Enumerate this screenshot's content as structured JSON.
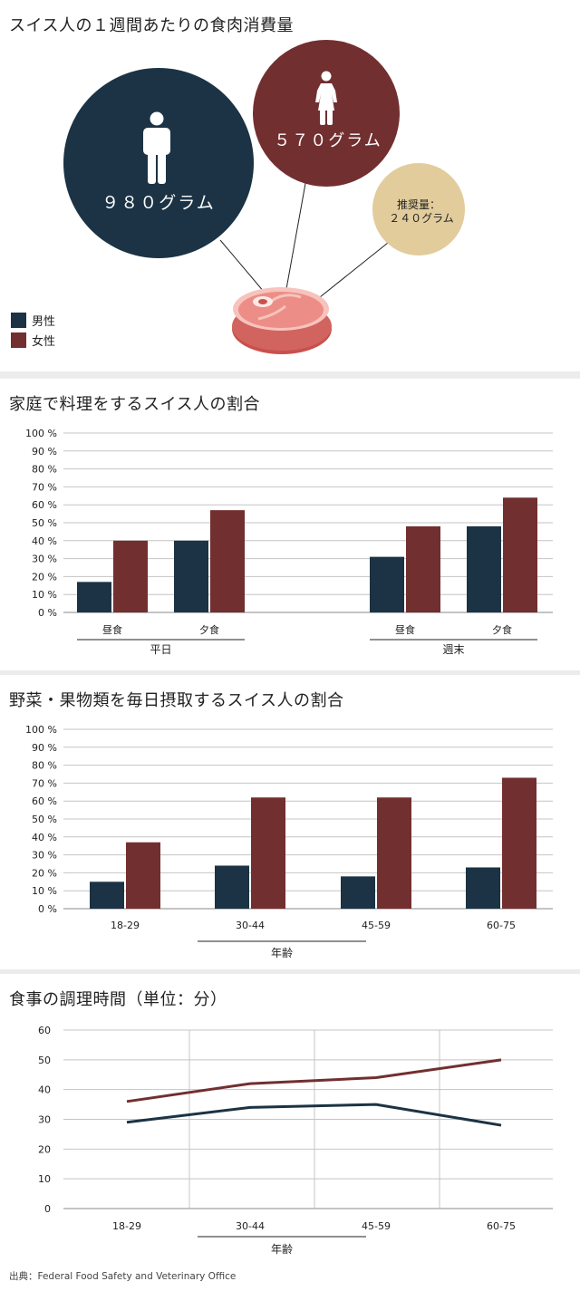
{
  "colors": {
    "male": "#1b3344",
    "female": "#722f30",
    "recommended": "#e2cc9c",
    "grid": "#c4c4c4"
  },
  "meat": {
    "title": "スイス人の１週間あたりの食肉消費量",
    "male": {
      "label": "９８０グラム",
      "icon": "male-person-icon"
    },
    "female": {
      "label": "５７０グラム",
      "icon": "female-person-icon"
    },
    "recommended": {
      "line1": "推奨量：",
      "line2": "２４０グラム"
    },
    "legend": {
      "male": "男性",
      "female": "女性"
    }
  },
  "cooking": {
    "title": "家庭で料理をするスイス人の割合"
  },
  "veg": {
    "title": "野菜・果物類を毎日摂取するスイス人の割合"
  },
  "prep": {
    "title": "食事の調理時間（単位：分）"
  },
  "source": "出典：Federal Food Safety and Veterinary Office",
  "chart_data": [
    {
      "type": "bar",
      "title": "スイス人の１週間あたりの食肉消費量",
      "categories": [
        "男性",
        "女性",
        "推奨量"
      ],
      "values": [
        980,
        570,
        240
      ],
      "unit": "グラム"
    },
    {
      "type": "bar",
      "title": "家庭で料理をするスイス人の割合",
      "groups": [
        {
          "label": "平日",
          "categories": [
            "昼食",
            "夕食"
          ]
        },
        {
          "label": "週末",
          "categories": [
            "昼食",
            "夕食"
          ]
        }
      ],
      "categories": [
        "昼食",
        "夕食",
        "昼食",
        "夕食"
      ],
      "series": [
        {
          "name": "男性",
          "values": [
            17,
            40,
            31,
            48
          ]
        },
        {
          "name": "女性",
          "values": [
            40,
            57,
            48,
            64
          ]
        }
      ],
      "ylim": [
        0,
        100
      ],
      "yticks": [
        "0 %",
        "10 %",
        "20 %",
        "30 %",
        "40 %",
        "50 %",
        "60 %",
        "70 %",
        "80 %",
        "90 %",
        "100 %"
      ],
      "grid": true
    },
    {
      "type": "bar",
      "title": "野菜・果物類を毎日摂取するスイス人の割合",
      "categories": [
        "18-29",
        "30-44",
        "45-59",
        "60-75"
      ],
      "xlabel": "年齢",
      "series": [
        {
          "name": "男性",
          "values": [
            15,
            24,
            18,
            23
          ]
        },
        {
          "name": "女性",
          "values": [
            37,
            62,
            62,
            73
          ]
        }
      ],
      "ylim": [
        0,
        100
      ],
      "yticks": [
        "0 %",
        "10 %",
        "20 %",
        "30 %",
        "40 %",
        "50 %",
        "60 %",
        "70 %",
        "80 %",
        "90 %",
        "100 %"
      ],
      "grid": true
    },
    {
      "type": "line",
      "title": "食事の調理時間（単位：分）",
      "categories": [
        "18-29",
        "30-44",
        "45-59",
        "60-75"
      ],
      "xlabel": "年齢",
      "series": [
        {
          "name": "男性",
          "values": [
            29,
            34,
            35,
            28
          ]
        },
        {
          "name": "女性",
          "values": [
            36,
            42,
            44,
            50
          ]
        }
      ],
      "ylim": [
        0,
        60
      ],
      "yticks": [
        "0",
        "10",
        "20",
        "30",
        "40",
        "50",
        "60"
      ],
      "grid": true
    }
  ]
}
